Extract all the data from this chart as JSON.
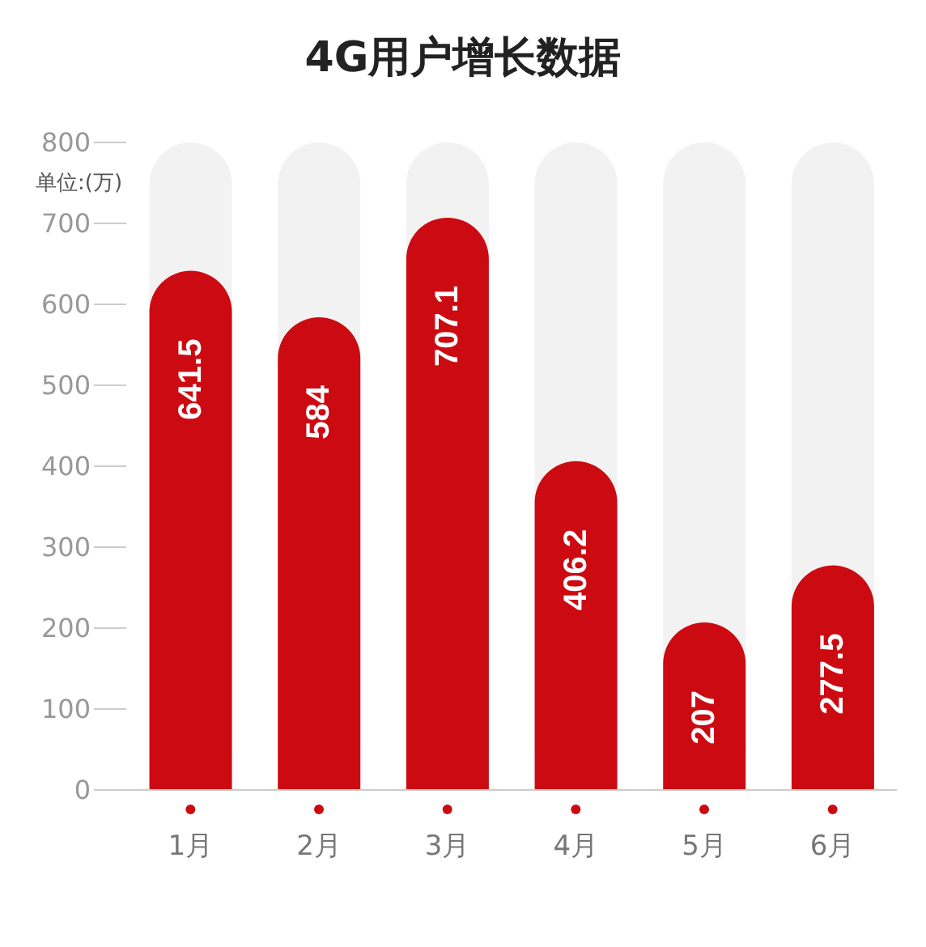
{
  "chart_data": {
    "type": "bar",
    "title": "4G用户增长数据",
    "ylabel": "单位:(万)",
    "categories": [
      "1月",
      "2月",
      "3月",
      "4月",
      "5月",
      "6月"
    ],
    "values": [
      641.5,
      584,
      707.1,
      406.2,
      207,
      277.5
    ],
    "color": "#cc0a12",
    "ylim": [
      0,
      800
    ],
    "yticks": [
      0,
      100,
      200,
      300,
      400,
      500,
      600,
      700,
      800
    ],
    "grid": false,
    "legend": false,
    "data_labels": true
  }
}
